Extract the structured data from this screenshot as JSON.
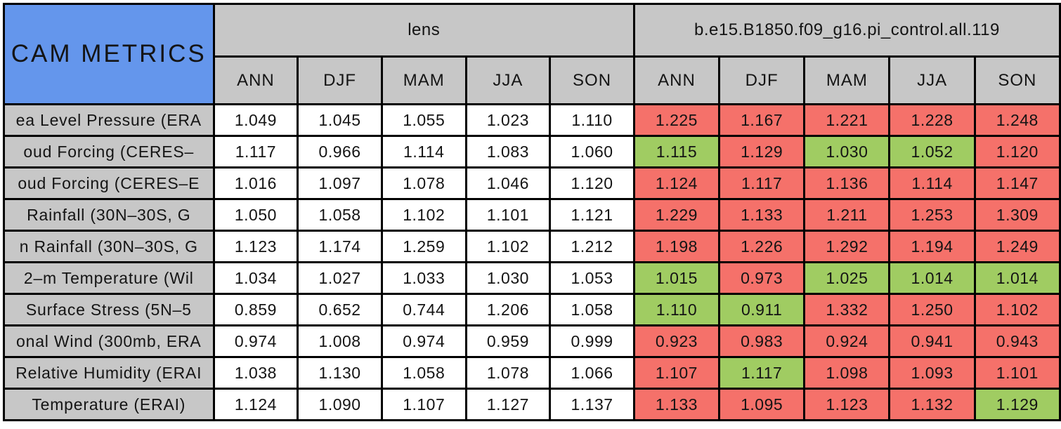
{
  "chart_data": {
    "type": "table",
    "title": "CAM METRICS",
    "seasons": [
      "ANN",
      "DJF",
      "MAM",
      "JJA",
      "SON"
    ],
    "groups": [
      {
        "label": "lens"
      },
      {
        "label": "b.e15.B1850.f09_g16.pi_control.all.119"
      }
    ],
    "legend_colors": {
      "corner_blue": "#6496EC",
      "header_grey": "#C7C7C7",
      "worse_red": "#F5716A",
      "better_green": "#A0CC62",
      "grid_black": "#000000"
    },
    "rows": [
      {
        "label": "ea Level Pressure (ERA",
        "lens": [
          "1.049",
          "1.045",
          "1.055",
          "1.023",
          "1.110"
        ],
        "control": [
          "1.225",
          "1.167",
          "1.221",
          "1.228",
          "1.248"
        ],
        "control_colors": [
          "red",
          "red",
          "red",
          "red",
          "red"
        ]
      },
      {
        "label": "oud Forcing (CERES–",
        "lens": [
          "1.117",
          "0.966",
          "1.114",
          "1.083",
          "1.060"
        ],
        "control": [
          "1.115",
          "1.129",
          "1.030",
          "1.052",
          "1.120"
        ],
        "control_colors": [
          "green",
          "red",
          "green",
          "green",
          "red"
        ]
      },
      {
        "label": "oud Forcing (CERES–E",
        "lens": [
          "1.016",
          "1.097",
          "1.078",
          "1.046",
          "1.120"
        ],
        "control": [
          "1.124",
          "1.117",
          "1.136",
          "1.114",
          "1.147"
        ],
        "control_colors": [
          "red",
          "red",
          "red",
          "red",
          "red"
        ]
      },
      {
        "label": "Rainfall (30N–30S, G",
        "lens": [
          "1.050",
          "1.058",
          "1.102",
          "1.101",
          "1.121"
        ],
        "control": [
          "1.229",
          "1.133",
          "1.211",
          "1.253",
          "1.309"
        ],
        "control_colors": [
          "red",
          "red",
          "red",
          "red",
          "red"
        ]
      },
      {
        "label": "n Rainfall (30N–30S, G",
        "lens": [
          "1.123",
          "1.174",
          "1.259",
          "1.102",
          "1.212"
        ],
        "control": [
          "1.198",
          "1.226",
          "1.292",
          "1.194",
          "1.249"
        ],
        "control_colors": [
          "red",
          "red",
          "red",
          "red",
          "red"
        ]
      },
      {
        "label": "2–m Temperature (Wil",
        "lens": [
          "1.034",
          "1.027",
          "1.033",
          "1.030",
          "1.053"
        ],
        "control": [
          "1.015",
          "0.973",
          "1.025",
          "1.014",
          "1.014"
        ],
        "control_colors": [
          "green",
          "red",
          "green",
          "green",
          "green"
        ]
      },
      {
        "label": "Surface Stress (5N–5",
        "lens": [
          "0.859",
          "0.652",
          "0.744",
          "1.206",
          "1.058"
        ],
        "control": [
          "1.110",
          "0.911",
          "1.332",
          "1.250",
          "1.102"
        ],
        "control_colors": [
          "green",
          "green",
          "red",
          "red",
          "red"
        ]
      },
      {
        "label": "onal Wind (300mb, ERA",
        "lens": [
          "0.974",
          "1.008",
          "0.974",
          "0.959",
          "0.999"
        ],
        "control": [
          "0.923",
          "0.983",
          "0.924",
          "0.941",
          "0.943"
        ],
        "control_colors": [
          "red",
          "red",
          "red",
          "red",
          "red"
        ]
      },
      {
        "label": "Relative Humidity (ERAI",
        "lens": [
          "1.038",
          "1.130",
          "1.058",
          "1.078",
          "1.066"
        ],
        "control": [
          "1.107",
          "1.117",
          "1.098",
          "1.093",
          "1.101"
        ],
        "control_colors": [
          "red",
          "green",
          "red",
          "red",
          "red"
        ]
      },
      {
        "label": "Temperature (ERAI)",
        "lens": [
          "1.124",
          "1.090",
          "1.107",
          "1.127",
          "1.137"
        ],
        "control": [
          "1.133",
          "1.095",
          "1.123",
          "1.132",
          "1.129"
        ],
        "control_colors": [
          "red",
          "red",
          "red",
          "red",
          "green"
        ]
      }
    ]
  }
}
